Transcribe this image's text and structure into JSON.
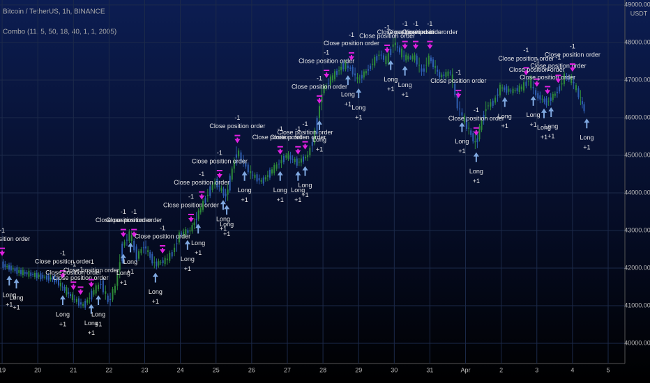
{
  "chart_data": {
    "type": "candlestick",
    "title": "Bitcoin / TetherUS, 1h, BINANCE",
    "subtitle": "Combo (11, 5, 50, 18, 40, 1, 1, 2005)",
    "y_unit": "USDT",
    "up_color": "#2e8b3a",
    "down_color": "#2f5fb3",
    "grid": true,
    "xlim": [
      -0.06,
      17.45
    ],
    "ylim": [
      39500,
      49130
    ],
    "xticks": [
      {
        "value": 0,
        "label": "19"
      },
      {
        "value": 1,
        "label": "20"
      },
      {
        "value": 2,
        "label": "21"
      },
      {
        "value": 3,
        "label": "22"
      },
      {
        "value": 4,
        "label": "23"
      },
      {
        "value": 5,
        "label": "24"
      },
      {
        "value": 6,
        "label": "25"
      },
      {
        "value": 7,
        "label": "26"
      },
      {
        "value": 8,
        "label": "27"
      },
      {
        "value": 9,
        "label": "28"
      },
      {
        "value": 10,
        "label": "29"
      },
      {
        "value": 11,
        "label": "30"
      },
      {
        "value": 12,
        "label": "31"
      },
      {
        "value": 13,
        "label": "Apr"
      },
      {
        "value": 14,
        "label": "2"
      },
      {
        "value": 15,
        "label": "3"
      },
      {
        "value": 16,
        "label": "4"
      },
      {
        "value": 17,
        "label": "5"
      }
    ],
    "yticks": [
      {
        "value": 40000,
        "label": "40000.00"
      },
      {
        "value": 41000,
        "label": "41000.00"
      },
      {
        "value": 42000,
        "label": "42000.00"
      },
      {
        "value": 43000,
        "label": "43000.00"
      },
      {
        "value": 44000,
        "label": "44000.00"
      },
      {
        "value": 45000,
        "label": "45000.00"
      },
      {
        "value": 46000,
        "label": "46000.00"
      },
      {
        "value": 47000,
        "label": "47000.00"
      },
      {
        "value": 48000,
        "label": "48000.00"
      },
      {
        "value": 49000,
        "label": "49000.00"
      }
    ],
    "x": [
      0,
      0.5,
      1,
      1.5,
      2,
      2.3,
      2.6,
      2.8,
      3,
      3.2,
      3.4,
      3.6,
      3.8,
      4,
      4.3,
      4.6,
      4.8,
      5,
      5.3,
      5.6,
      5.8,
      6,
      6.3,
      6.6,
      6.8,
      7,
      7.3,
      7.6,
      7.8,
      8,
      8.3,
      8.6,
      8.8,
      9,
      9.3,
      9.6,
      9.8,
      10,
      10.3,
      10.6,
      10.8,
      11,
      11.3,
      11.6,
      11.8,
      12,
      12.3,
      12.6,
      12.8,
      13,
      13.3,
      13.6,
      13.8,
      14,
      14.3,
      14.6,
      14.8,
      15,
      15.3,
      15.6,
      15.8,
      16,
      16.2,
      16.35
    ],
    "values": [
      42100,
      41900,
      41800,
      41700,
      41200,
      41000,
      41400,
      41600,
      41100,
      41500,
      42600,
      42900,
      42300,
      42600,
      42100,
      42200,
      42400,
      42900,
      43000,
      43600,
      44000,
      44300,
      43900,
      45100,
      44800,
      44500,
      44300,
      44600,
      44800,
      45000,
      44800,
      45000,
      45600,
      46700,
      47100,
      47400,
      47300,
      47000,
      47300,
      47700,
      47500,
      48000,
      47600,
      47600,
      47200,
      47600,
      47100,
      47200,
      46300,
      45900,
      45300,
      46300,
      46400,
      46800,
      46700,
      46800,
      47000,
      46600,
      46400,
      46700,
      47100,
      47000,
      46600,
      46200
    ],
    "signal_texts": {
      "close": "Close position order",
      "close_qty": "-1",
      "long": "Long",
      "long_qty": "+1"
    },
    "close_signals": [
      0.0,
      1.7,
      2.0,
      2.2,
      2.5,
      3.4,
      3.7,
      4.5,
      5.3,
      5.6,
      6.1,
      6.6,
      7.8,
      8.3,
      8.5,
      8.9,
      9.1,
      9.8,
      10.8,
      11.3,
      11.6,
      12.0,
      12.8,
      13.3,
      14.7,
      15.0,
      15.3,
      15.6,
      16.0
    ],
    "long_signals": [
      0.2,
      0.4,
      1.7,
      2.5,
      2.7,
      3.4,
      3.6,
      4.3,
      5.2,
      5.5,
      6.2,
      6.3,
      6.8,
      7.8,
      8.3,
      8.5,
      8.9,
      9.7,
      10.0,
      10.9,
      11.3,
      12.9,
      13.3,
      14.1,
      14.9,
      15.2,
      15.4,
      16.4
    ]
  }
}
